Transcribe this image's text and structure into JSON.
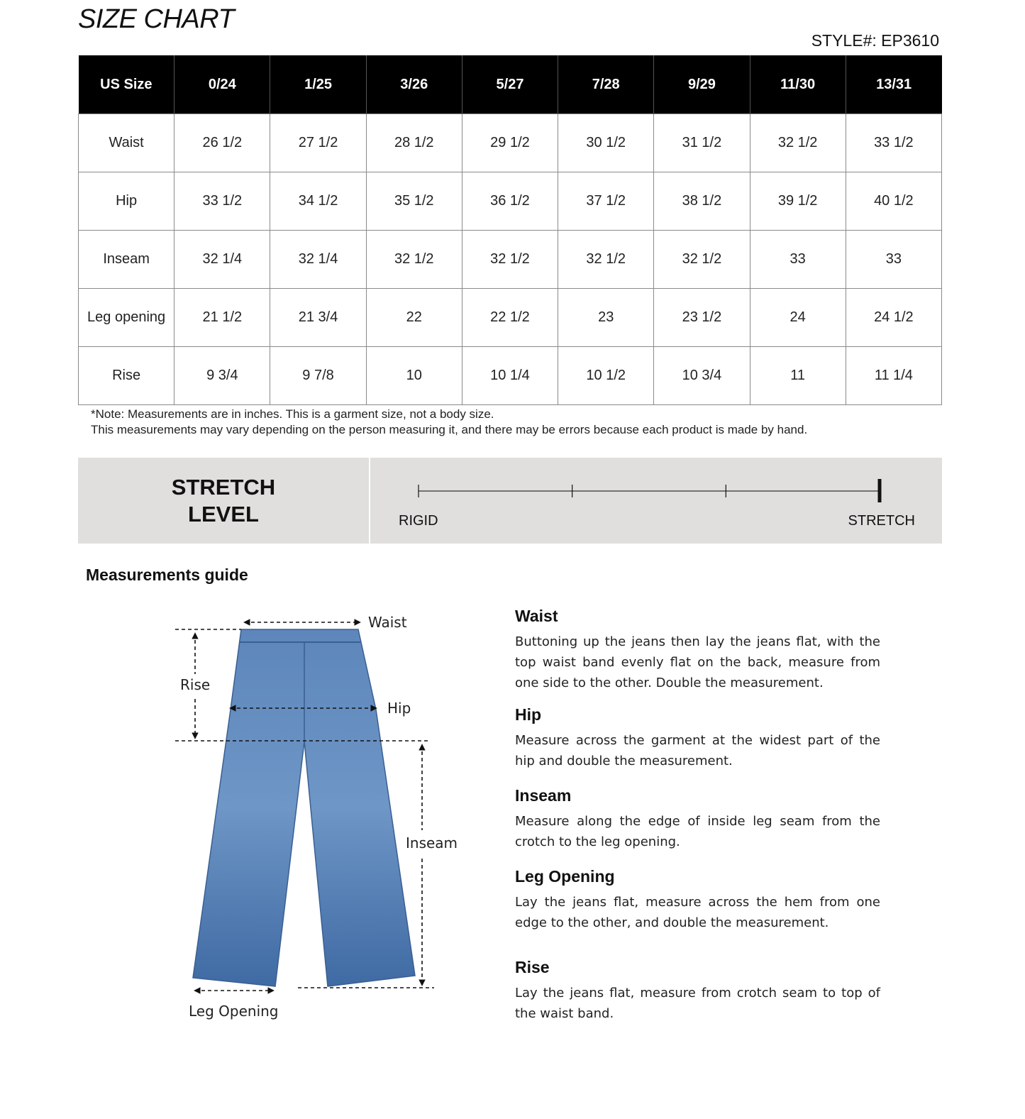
{
  "header": {
    "title": "SIZE CHART",
    "style": "STYLE#: EP3610"
  },
  "table": {
    "columns": [
      "US Size",
      "0/24",
      "1/25",
      "3/26",
      "5/27",
      "7/28",
      "9/29",
      "11/30",
      "13/31"
    ],
    "rows": [
      [
        "Waist",
        "26 1/2",
        "27 1/2",
        "28 1/2",
        "29 1/2",
        "30 1/2",
        "31 1/2",
        "32 1/2",
        "33 1/2"
      ],
      [
        "Hip",
        "33 1/2",
        "34 1/2",
        "35 1/2",
        "36 1/2",
        "37 1/2",
        "38 1/2",
        "39 1/2",
        "40 1/2"
      ],
      [
        "Inseam",
        "32 1/4",
        "32 1/4",
        "32 1/2",
        "32 1/2",
        "32 1/2",
        "32 1/2",
        "33",
        "33"
      ],
      [
        "Leg opening",
        "21 1/2",
        "21 3/4",
        "22",
        "22 1/2",
        "23",
        "23 1/2",
        "24",
        "24 1/2"
      ],
      [
        "Rise",
        "9 3/4",
        "9 7/8",
        "10",
        "10 1/4",
        "10 1/2",
        "10 3/4",
        "11",
        "11 1/4"
      ]
    ]
  },
  "note": {
    "line1": "*Note: Measurements are in inches. This is a garment size, not a body size.",
    "line2": "This measurements may vary depending on the person measuring it, and there may be errors because each product is made by hand."
  },
  "stretch": {
    "label_line1": "STRETCH",
    "label_line2": "LEVEL",
    "min_label": "RIGID",
    "max_label": "STRETCH",
    "scale_steps": 4,
    "selected_step": 4
  },
  "guide": {
    "title": "Measurements guide",
    "diagram_labels": {
      "waist": "Waist",
      "rise": "Rise",
      "hip": "Hip",
      "inseam": "Inseam",
      "leg_opening": "Leg Opening"
    },
    "jeans_color": "#4a76ad",
    "sections": [
      {
        "title": "Waist",
        "text": "Buttoning up the jeans then lay the jeans flat, with the top waist band evenly flat on the back, measure from one side to the other. Double the measurement."
      },
      {
        "title": "Hip",
        "text": "Measure across the garment at the widest part of the hip and double the measurement."
      },
      {
        "title": "Inseam",
        "text": "Measure along the edge of inside leg seam from the crotch to the leg opening."
      },
      {
        "title": "Leg Opening",
        "text": "Lay the jeans flat, measure across the hem from one edge to the other, and double the measurement."
      },
      {
        "title": "Rise",
        "text": "Lay the jeans flat, measure from crotch seam to top of the waist band."
      }
    ]
  }
}
